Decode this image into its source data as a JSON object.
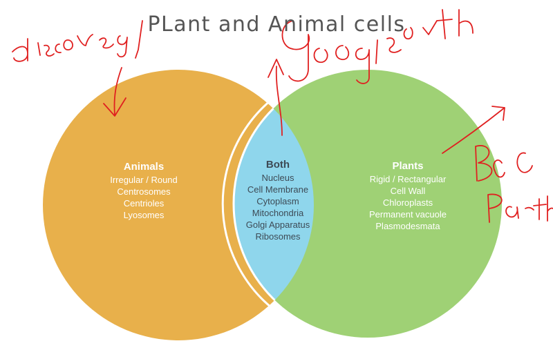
{
  "title": "PLant and Animal cells",
  "colors": {
    "animals": "#e8b04b",
    "plants": "#9fd175",
    "both": "#8fd6ec",
    "divider": "#ffffff",
    "ink": "#e02020",
    "title": "#555555"
  },
  "animals": {
    "label": "Animals",
    "items": [
      "Irregular / Round",
      "Centrosomes",
      "Centrioles",
      "Lyosomes"
    ]
  },
  "both": {
    "label": "Both",
    "items": [
      "Nucleus",
      "Cell Membrane",
      "Cytoplasm",
      "Mitochondria",
      "Golgi Apparatus",
      "Ribosomes"
    ]
  },
  "plants": {
    "label": "Plants",
    "items": [
      "Rigid / Rectangular",
      "Cell Wall",
      "Chloroplasts",
      "Permanent vacuole",
      "Plasmodesmata"
    ]
  },
  "handwriting": {
    "note_1": "discovery",
    "note_2": "google earth",
    "note_3": "bbc earth"
  }
}
